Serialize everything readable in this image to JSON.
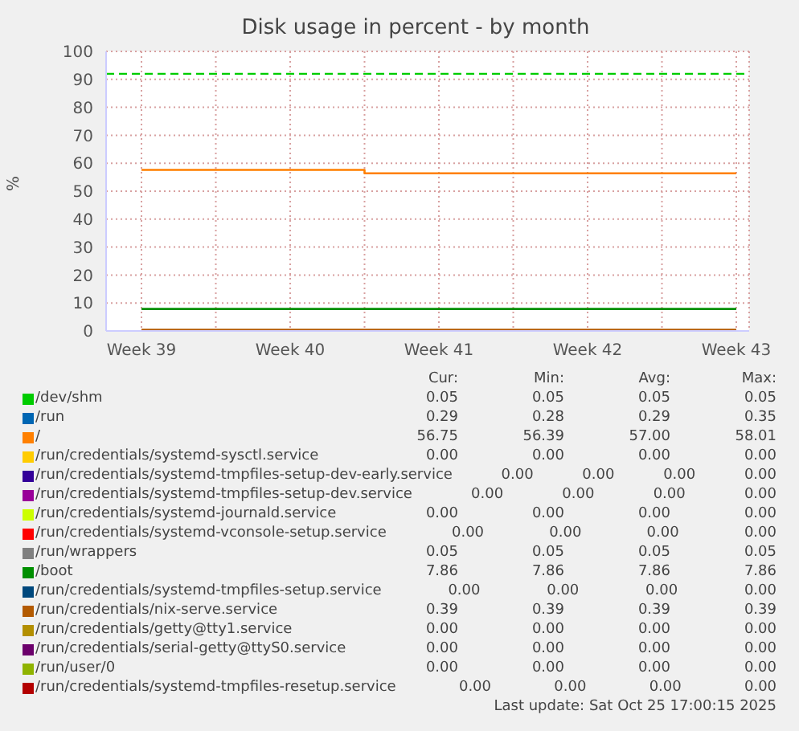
{
  "chart_data": {
    "type": "line",
    "title": "Disk usage in percent - by month",
    "ylabel": "%",
    "categories": [
      "Week 39",
      null,
      "Week 40",
      null,
      "Week 41",
      null,
      "Week 42",
      null,
      "Week 43"
    ],
    "ylim": [
      0,
      100
    ],
    "yticks": [
      0,
      10,
      20,
      30,
      40,
      50,
      60,
      70,
      80,
      90,
      100
    ],
    "grid": true,
    "legend": "bottom",
    "ref_lines": [
      {
        "axis": "y",
        "value": 92,
        "color": "#00cc00",
        "line_style": "dashed"
      }
    ],
    "series": [
      {
        "name": "/dev/shm",
        "color": "#00cc00",
        "values": [
          null,
          null,
          null,
          null,
          null,
          null,
          null,
          null,
          null
        ]
      },
      {
        "name": "/run",
        "color": "#0066b3",
        "values": [
          null,
          null,
          null,
          null,
          null,
          null,
          null,
          null,
          null
        ]
      },
      {
        "name": "/",
        "color": "#ff8000",
        "type": "step",
        "values": [
          57.6,
          57.6,
          57.6,
          56.4,
          56.4,
          56.4,
          56.4,
          56.4,
          56.4
        ]
      },
      {
        "name": "/run/credentials/systemd-sysctl.service",
        "color": "#ffcc00",
        "values": [
          null,
          null,
          null,
          null,
          null,
          null,
          null,
          null,
          null
        ]
      },
      {
        "name": "/run/credentials/systemd-tmpfiles-setup-dev-early.service",
        "color": "#330099",
        "values": [
          null,
          null,
          null,
          null,
          null,
          null,
          null,
          null,
          null
        ]
      },
      {
        "name": "/run/credentials/systemd-tmpfiles-setup-dev.service",
        "color": "#990099",
        "values": [
          null,
          null,
          null,
          null,
          null,
          null,
          null,
          null,
          null
        ]
      },
      {
        "name": "/run/credentials/systemd-journald.service",
        "color": "#ccff00",
        "values": [
          null,
          null,
          null,
          null,
          null,
          null,
          null,
          null,
          null
        ]
      },
      {
        "name": "/run/credentials/systemd-vconsole-setup.service",
        "color": "#ff0000",
        "values": [
          null,
          null,
          null,
          null,
          null,
          null,
          null,
          null,
          null
        ]
      },
      {
        "name": "/run/wrappers",
        "color": "#808080",
        "values": [
          null,
          null,
          null,
          null,
          null,
          null,
          null,
          null,
          null
        ]
      },
      {
        "name": "/boot",
        "color": "#008f00",
        "values": [
          7.86,
          7.86,
          7.86,
          7.86,
          7.86,
          7.86,
          7.86,
          7.86,
          7.86
        ]
      },
      {
        "name": "/run/credentials/systemd-tmpfiles-setup.service",
        "color": "#00487d",
        "values": [
          null,
          null,
          null,
          null,
          null,
          null,
          null,
          null,
          null
        ]
      },
      {
        "name": "/run/credentials/nix-serve.service",
        "color": "#b35a00",
        "values": [
          0.39,
          0.39,
          0.39,
          0.39,
          0.39,
          0.39,
          0.39,
          0.39,
          0.39
        ]
      },
      {
        "name": "/run/credentials/getty@tty1.service",
        "color": "#b38f00",
        "values": [
          null,
          null,
          null,
          null,
          null,
          null,
          null,
          null,
          null
        ]
      },
      {
        "name": "/run/credentials/serial-getty@ttyS0.service",
        "color": "#6b006b",
        "values": [
          null,
          null,
          null,
          null,
          null,
          null,
          null,
          null,
          null
        ]
      },
      {
        "name": "/run/user/0",
        "color": "#8fb300",
        "values": [
          null,
          null,
          null,
          null,
          null,
          null,
          null,
          null,
          null
        ]
      },
      {
        "name": "/run/credentials/systemd-tmpfiles-resetup.service",
        "color": "#b30000",
        "values": [
          null,
          null,
          null,
          null,
          null,
          null,
          null,
          null,
          null
        ]
      }
    ],
    "annotations": [
      "Cur:",
      "Min:",
      "Avg:",
      "Max:",
      "0.05",
      "0.05",
      "0.05",
      "0.05",
      "0.29",
      "0.28",
      "0.29",
      "0.35",
      "56.75",
      "56.39",
      "57.00",
      "58.01",
      "0.00",
      "0.00",
      "0.00",
      "0.00",
      "0.00",
      "0.00",
      "0.00",
      "0.00",
      "0.00",
      "0.00",
      "0.00",
      "0.00",
      "0.00",
      "0.00",
      "0.00",
      "0.00",
      "0.00",
      "0.00",
      "0.00",
      "0.00",
      "0.05",
      "0.05",
      "0.05",
      "0.05",
      "7.86",
      "7.86",
      "7.86",
      "7.86",
      "0.00",
      "0.00",
      "0.00",
      "0.00",
      "0.39",
      "0.39",
      "0.39",
      "0.39",
      "0.00",
      "0.00",
      "0.00",
      "0.00",
      "0.00",
      "0.00",
      "0.00",
      "0.00",
      "0.00",
      "0.00",
      "0.00",
      "0.00",
      "0.00",
      "0.00",
      "0.00",
      "0.00",
      "Last update: Sat Oct 25 17:00:15 2025"
    ]
  }
}
